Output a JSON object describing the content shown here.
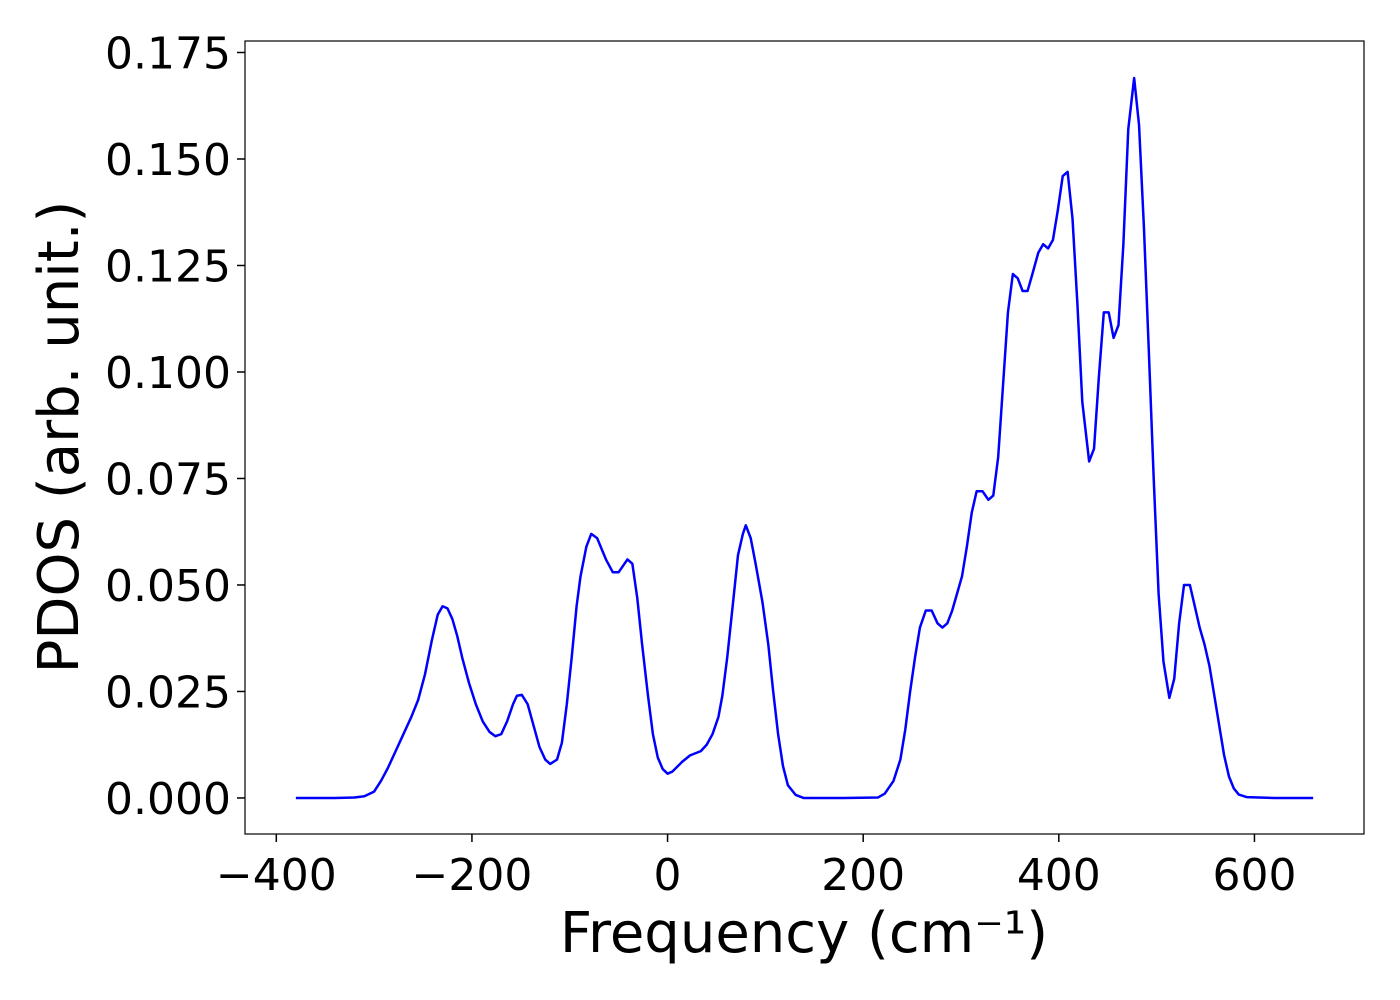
{
  "chart_data": {
    "type": "line",
    "xlabel": "Frequency (cm⁻¹)",
    "ylabel": "PDOS (arb. unit.)",
    "color": "#0000ff",
    "xlim": [
      -432,
      712
    ],
    "ylim": [
      -0.00846,
      0.1777
    ],
    "xticks": [
      {
        "value": -400,
        "label": "−400"
      },
      {
        "value": -200,
        "label": "−200"
      },
      0,
      200,
      400,
      600
    ],
    "yticks": [
      {
        "value": 0,
        "label": "0.000"
      },
      {
        "value": 0.025,
        "label": "0.025"
      },
      {
        "value": 0.05,
        "label": "0.050"
      },
      {
        "value": 0.075,
        "label": "0.075"
      },
      {
        "value": 0.1,
        "label": "0.100"
      },
      {
        "value": 0.125,
        "label": "0.125"
      },
      {
        "value": 0.15,
        "label": "0.150"
      },
      {
        "value": 0.175,
        "label": "0.175"
      }
    ],
    "x": [
      -380,
      -340,
      -320,
      -310,
      -300,
      -293,
      -286,
      -278,
      -270,
      -262,
      -255,
      -248,
      -241,
      -235,
      -230,
      -225,
      -220,
      -215,
      -210,
      -203,
      -196,
      -189,
      -182,
      -176,
      -170,
      -164,
      -158,
      -154,
      -149,
      -143,
      -137,
      -131,
      -125,
      -120,
      -113,
      -108,
      -103,
      -98,
      -93,
      -89,
      -83,
      -78,
      -72,
      -63,
      -56,
      -50,
      -41,
      -36,
      -31,
      -26,
      -20,
      -15,
      -10,
      -5,
      0,
      5,
      15,
      23,
      34,
      40,
      46,
      52,
      56,
      61,
      67,
      72,
      77,
      80,
      85,
      90,
      97,
      103,
      108,
      113,
      118,
      123,
      131,
      139,
      180,
      215,
      222,
      231,
      238,
      243,
      248,
      253,
      258,
      264,
      270,
      276,
      281,
      286,
      291,
      301,
      306,
      311,
      316,
      322,
      328,
      333,
      338,
      343,
      348,
      353,
      358,
      363,
      368,
      373,
      379,
      384,
      389,
      394,
      399,
      404,
      409,
      414,
      419,
      424,
      431,
      436,
      441,
      446,
      451,
      456,
      461,
      466,
      471,
      477,
      482,
      487,
      492,
      497,
      502,
      507,
      513,
      518,
      523,
      528,
      534,
      539,
      544,
      549,
      554,
      559,
      564,
      569,
      574,
      579,
      584,
      592,
      620,
      660
    ],
    "values": [
      0,
      0,
      0.0001,
      0.0004,
      0.0015,
      0.004,
      0.007,
      0.011,
      0.015,
      0.019,
      0.023,
      0.029,
      0.037,
      0.043,
      0.045,
      0.0445,
      0.042,
      0.038,
      0.033,
      0.027,
      0.022,
      0.018,
      0.0155,
      0.0145,
      0.015,
      0.018,
      0.022,
      0.024,
      0.0242,
      0.022,
      0.017,
      0.012,
      0.009,
      0.008,
      0.009,
      0.013,
      0.022,
      0.033,
      0.045,
      0.052,
      0.059,
      0.062,
      0.061,
      0.056,
      0.053,
      0.053,
      0.056,
      0.055,
      0.047,
      0.036,
      0.024,
      0.015,
      0.0095,
      0.0068,
      0.0057,
      0.0062,
      0.0085,
      0.01,
      0.011,
      0.0125,
      0.015,
      0.019,
      0.024,
      0.033,
      0.046,
      0.057,
      0.062,
      0.064,
      0.061,
      0.055,
      0.046,
      0.036,
      0.025,
      0.015,
      0.0075,
      0.003,
      0.0007,
      0,
      0,
      0.0001,
      0.001,
      0.004,
      0.009,
      0.016,
      0.025,
      0.033,
      0.04,
      0.044,
      0.044,
      0.041,
      0.04,
      0.041,
      0.044,
      0.052,
      0.059,
      0.067,
      0.072,
      0.072,
      0.07,
      0.071,
      0.08,
      0.097,
      0.114,
      0.123,
      0.122,
      0.119,
      0.119,
      0.123,
      0.128,
      0.13,
      0.129,
      0.131,
      0.138,
      0.146,
      0.147,
      0.136,
      0.116,
      0.093,
      0.079,
      0.082,
      0.099,
      0.114,
      0.114,
      0.108,
      0.111,
      0.13,
      0.157,
      0.169,
      0.158,
      0.134,
      0.105,
      0.075,
      0.048,
      0.032,
      0.0235,
      0.028,
      0.041,
      0.05,
      0.05,
      0.045,
      0.04,
      0.036,
      0.031,
      0.024,
      0.017,
      0.01,
      0.005,
      0.0022,
      0.0008,
      0.0002,
      0,
      0
    ]
  }
}
